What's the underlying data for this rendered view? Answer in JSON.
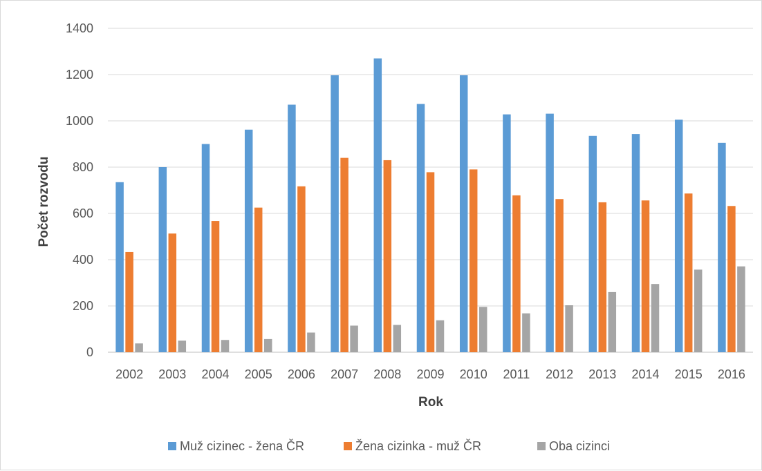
{
  "chart_data": {
    "type": "bar",
    "title": "",
    "xlabel": "Rok",
    "ylabel": "Počet rozvodu",
    "ylim": [
      0,
      1400
    ],
    "y_ticks": [
      0,
      200,
      400,
      600,
      800,
      1000,
      1200,
      1400
    ],
    "grid": true,
    "legend_position": "bottom",
    "categories": [
      "2002",
      "2003",
      "2004",
      "2005",
      "2006",
      "2007",
      "2008",
      "2009",
      "2010",
      "2011",
      "2012",
      "2013",
      "2014",
      "2015",
      "2016"
    ],
    "series": [
      {
        "name": "Muž cizinec - žena ČR",
        "color": "#5b9bd5",
        "values": [
          735,
          800,
          900,
          962,
          1070,
          1197,
          1270,
          1073,
          1197,
          1028,
          1031,
          935,
          943,
          1005,
          905
        ]
      },
      {
        "name": "Žena cizinka - muž ČR",
        "color": "#ed7d31",
        "values": [
          433,
          513,
          567,
          625,
          717,
          840,
          830,
          778,
          790,
          678,
          662,
          648,
          656,
          686,
          632
        ]
      },
      {
        "name": "Oba cizinci",
        "color": "#a5a5a5",
        "values": [
          38,
          50,
          53,
          57,
          85,
          115,
          118,
          138,
          196,
          168,
          203,
          260,
          295,
          357,
          371
        ]
      }
    ]
  }
}
